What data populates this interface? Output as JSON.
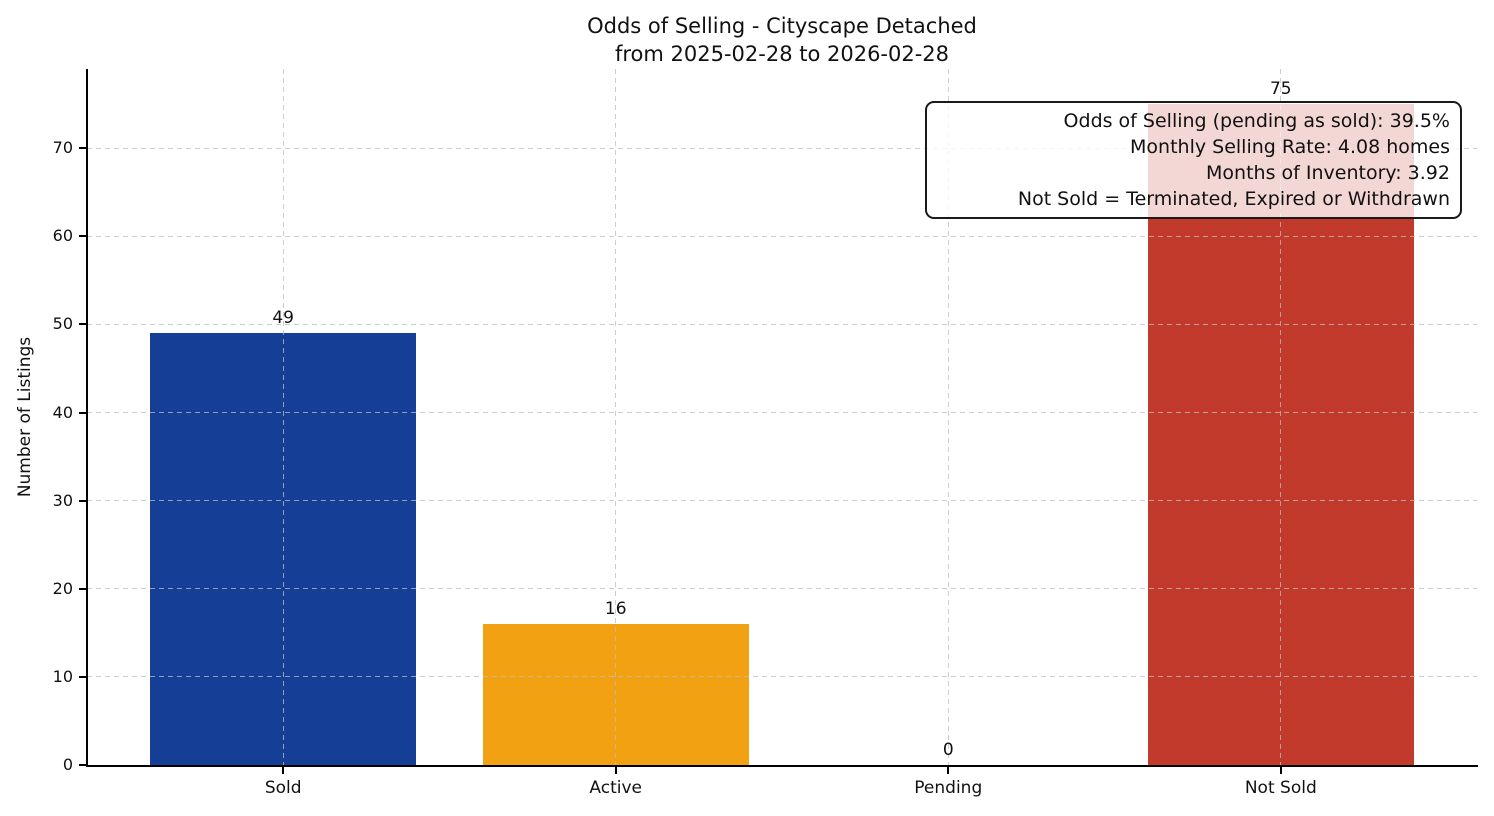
{
  "title": {
    "line1": "Odds of Selling - Cityscape Detached",
    "line2": "from 2025-02-28 to 2026-02-28"
  },
  "ylabel": "Number of Listings",
  "annotation": {
    "lines": [
      "Odds of Selling (pending as sold): 39.5%",
      "Monthly Selling Rate: 4.08 homes",
      "Months of Inventory: 3.92",
      "Not Sold = Terminated, Expired or Withdrawn"
    ]
  },
  "colors": {
    "sold_bar": "#153E96",
    "active_bar": "#F2A113",
    "not_sold_bar": "#C23A2C",
    "grid": "#bebebe",
    "axis": "#000000"
  },
  "chart_data": {
    "type": "bar",
    "title": "Odds of Selling - Cityscape Detached\nfrom 2025-02-28 to 2026-02-28",
    "categories": [
      "Sold",
      "Active",
      "Pending",
      "Not Sold"
    ],
    "values": [
      49,
      16,
      0,
      75
    ],
    "value_labels": [
      "49",
      "16",
      "0",
      "75"
    ],
    "bar_colors": [
      "#153E96",
      "#F2A113",
      null,
      "#C23A2C"
    ],
    "xlabel": "",
    "ylabel": "Number of Listings",
    "yticks": [
      0,
      10,
      20,
      30,
      40,
      50,
      60,
      70
    ],
    "ylim": [
      0,
      79
    ],
    "grid": true,
    "grid_style": "dashed",
    "legend": "none",
    "annotation_lines": [
      "Odds of Selling (pending as sold): 39.5%",
      "Monthly Selling Rate: 4.08 homes",
      "Months of Inventory: 3.92",
      "Not Sold = Terminated, Expired or Withdrawn"
    ]
  }
}
